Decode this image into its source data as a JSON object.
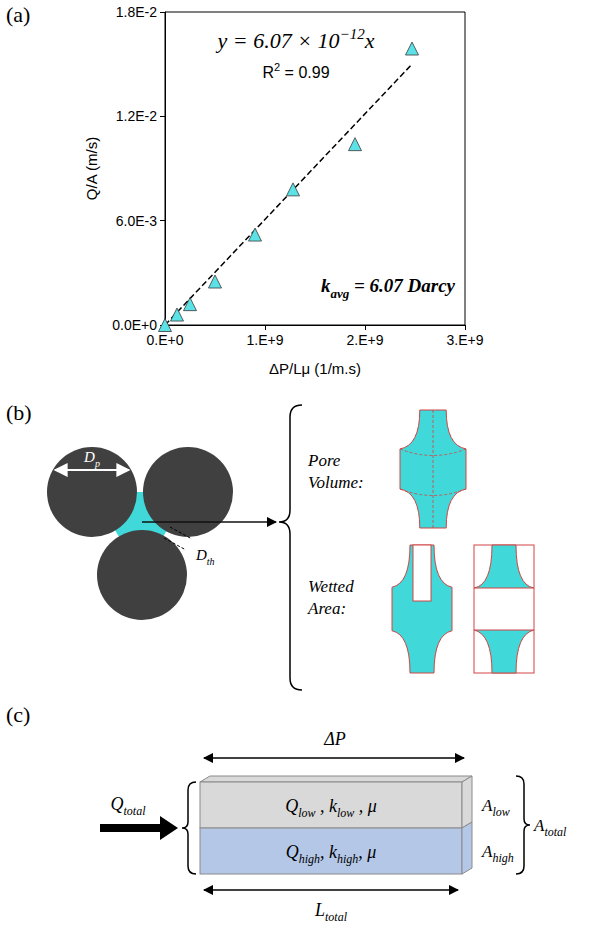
{
  "chart_data": {
    "type": "scatter",
    "panel_label": "(a)",
    "x_label": "ΔP/Lμ (1/m.s)",
    "y_label": "Q/A (m/s)",
    "x": [
      0,
      120000000,
      250000000,
      500000000,
      900000000,
      1280000000,
      1900000000,
      2470000000
    ],
    "values": [
      0,
      0.0006,
      0.0012,
      0.0025,
      0.0052,
      0.0078,
      0.0104,
      0.0159
    ],
    "color": "#5ce1e6",
    "marker": "triangle",
    "xlim": [
      0,
      3000000000
    ],
    "xticks": [
      {
        "value": 0,
        "label": "0.E+0"
      },
      {
        "value": 1000000000,
        "label": "1.E+9"
      },
      {
        "value": 2000000000,
        "label": "2.E+9"
      },
      {
        "value": 3000000000,
        "label": "3.E+9"
      }
    ],
    "ylim": [
      0,
      0.018
    ],
    "yticks": [
      {
        "value": 0,
        "label": "0.0E+0"
      },
      {
        "value": 0.006,
        "label": "6.0E-3"
      },
      {
        "value": 0.012,
        "label": "1.2E-2"
      },
      {
        "value": 0.018,
        "label": "1.8E-2"
      }
    ],
    "grid": false,
    "fit_line": {
      "x": [
        0,
        2470000000
      ],
      "values": [
        0,
        0.015
      ],
      "line_style": "dashed",
      "color": "#000000"
    },
    "annotations": {
      "equation": [
        "y = 6.07 × 10",
        {
          "sup": "−12"
        },
        "x"
      ],
      "r_squared": [
        "R",
        {
          "sup": "2"
        },
        " = 0.99"
      ],
      "permeability": [
        "k",
        {
          "sub": "avg"
        },
        " = 6.07 Darcy"
      ]
    }
  },
  "panels": [
    {
      "label": "(b)",
      "pore_diameter": [
        "D",
        {
          "sub": "p"
        }
      ],
      "throat_diameter": [
        "D",
        {
          "sub": "th"
        }
      ],
      "pore_volume": "Pore Volume:",
      "wetted_area": "Wetted Area:",
      "grain_color": "#404040",
      "pore_color": "#40d8d8"
    },
    {
      "label": "(c)",
      "pressure": "ΔP",
      "flow": [
        "Q",
        {
          "sub": "total"
        }
      ],
      "length": [
        "L",
        {
          "sub": "total"
        }
      ],
      "total_area": [
        "A",
        {
          "sub": "total"
        }
      ],
      "layers": [
        {
          "text": [
            "Q",
            {
              "sub": "low"
            },
            " , k",
            {
              "sub": "low"
            },
            " , μ"
          ],
          "area": [
            "A",
            {
              "sub": "low"
            }
          ],
          "color": "#d9d9d9"
        },
        {
          "text": [
            "Q",
            {
              "sub": "high"
            },
            ", k",
            {
              "sub": "high"
            },
            ", μ"
          ],
          "area": [
            "A",
            {
              "sub": "high"
            }
          ],
          "color": "#b4c7e7"
        }
      ]
    }
  ]
}
